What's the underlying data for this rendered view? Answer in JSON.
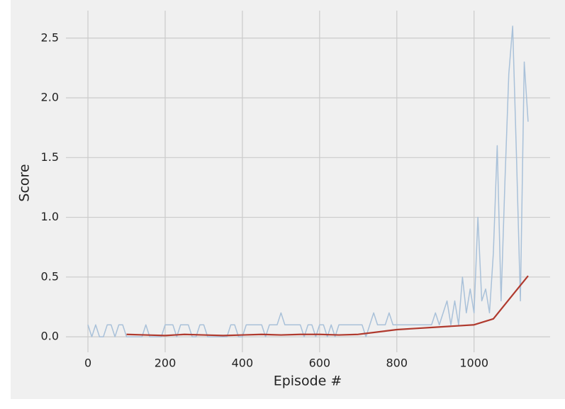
{
  "chart_data": {
    "type": "line",
    "x_label": "Episode #",
    "y_label": "Score",
    "xlim": [
      -57,
      1197
    ],
    "ylim": [
      -0.13,
      2.73
    ],
    "xticks": [
      0,
      200,
      400,
      600,
      800,
      1000
    ],
    "yticks": [
      {
        "value": 0,
        "label": "0.0"
      },
      0.5,
      {
        "value": 1,
        "label": "1.0"
      },
      1.5,
      {
        "value": 2,
        "label": "2.0"
      },
      2.5
    ],
    "grid": true,
    "series": [
      {
        "color": "#a9c1d9",
        "x": [
          0,
          10,
          20,
          30,
          40,
          50,
          60,
          70,
          80,
          90,
          100,
          110,
          120,
          130,
          140,
          150,
          160,
          170,
          180,
          190,
          200,
          210,
          220,
          230,
          240,
          250,
          260,
          270,
          280,
          290,
          300,
          310,
          320,
          330,
          340,
          350,
          360,
          370,
          380,
          390,
          400,
          410,
          420,
          430,
          440,
          450,
          460,
          470,
          480,
          490,
          500,
          510,
          520,
          530,
          540,
          550,
          560,
          570,
          580,
          590,
          600,
          610,
          620,
          630,
          640,
          650,
          660,
          670,
          680,
          690,
          700,
          710,
          720,
          730,
          740,
          750,
          760,
          770,
          780,
          790,
          800,
          810,
          820,
          830,
          840,
          850,
          860,
          870,
          880,
          890,
          900,
          910,
          920,
          930,
          940,
          950,
          960,
          970,
          980,
          990,
          1000,
          1010,
          1020,
          1030,
          1040,
          1050,
          1060,
          1070,
          1080,
          1090,
          1100,
          1110,
          1120,
          1130,
          1140
        ],
        "values": [
          0.1,
          0,
          0.1,
          0,
          0,
          0.1,
          0.1,
          0,
          0.1,
          0.1,
          0,
          0,
          0,
          0,
          0,
          0.1,
          0,
          0,
          0,
          0,
          0.1,
          0.1,
          0.1,
          0,
          0.1,
          0.1,
          0.1,
          0,
          0,
          0.1,
          0.1,
          0,
          0,
          0,
          0,
          0,
          0,
          0.1,
          0.1,
          0,
          0,
          0.1,
          0.1,
          0.1,
          0.1,
          0.1,
          0,
          0.1,
          0.1,
          0.1,
          0.2,
          0.1,
          0.1,
          0.1,
          0.1,
          0.1,
          0,
          0.1,
          0.1,
          0,
          0.1,
          0.1,
          0,
          0.1,
          0,
          0.1,
          0.1,
          0.1,
          0.1,
          0.1,
          0.1,
          0.1,
          0,
          0.1,
          0.2,
          0.1,
          0.1,
          0.1,
          0.2,
          0.1,
          0.1,
          0.1,
          0.1,
          0.1,
          0.1,
          0.1,
          0.1,
          0.1,
          0.1,
          0.1,
          0.2,
          0.1,
          0.2,
          0.3,
          0.1,
          0.3,
          0.1,
          0.5,
          0.2,
          0.4,
          0.2,
          1.0,
          0.3,
          0.4,
          0.2,
          0.7,
          1.6,
          0.3,
          1.3,
          2.2,
          2.6,
          1.5,
          0.3,
          2.3,
          1.8
        ]
      },
      {
        "color": "#b03a2e",
        "x": [
          100,
          150,
          200,
          250,
          300,
          350,
          400,
          450,
          500,
          550,
          600,
          650,
          700,
          750,
          800,
          850,
          900,
          950,
          1000,
          1050,
          1100,
          1140
        ],
        "values": [
          0.02,
          0.015,
          0.01,
          0.02,
          0.015,
          0.01,
          0.015,
          0.02,
          0.015,
          0.02,
          0.02,
          0.015,
          0.02,
          0.04,
          0.06,
          0.07,
          0.08,
          0.09,
          0.1,
          0.15,
          0.35,
          0.51
        ]
      }
    ]
  }
}
